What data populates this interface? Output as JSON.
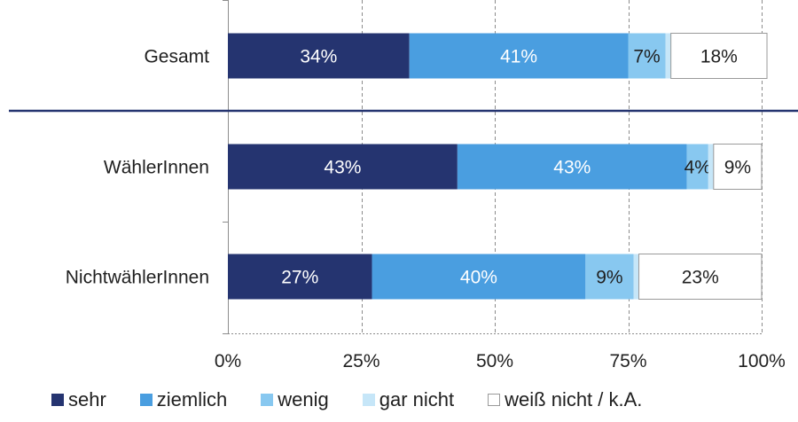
{
  "chart_data": {
    "type": "bar",
    "orientation": "horizontal",
    "stacked": true,
    "categories": [
      "Gesamt",
      "WählerInnen",
      "NichtwählerInnen"
    ],
    "series": [
      {
        "name": "sehr",
        "color": "#253470",
        "values": [
          34,
          43,
          27
        ],
        "labels": [
          "34%",
          "43%",
          "27%"
        ]
      },
      {
        "name": "ziemlich",
        "color": "#4a9ee0",
        "values": [
          41,
          43,
          40
        ],
        "labels": [
          "41%",
          "43%",
          "40%"
        ]
      },
      {
        "name": "wenig",
        "color": "#88c8f0",
        "values": [
          7,
          4,
          9
        ],
        "labels": [
          "7%",
          "4%",
          "9%"
        ]
      },
      {
        "name": "gar nicht",
        "color": "#c6e6f8",
        "values": [
          1,
          1,
          1
        ],
        "labels": [
          "",
          "",
          ""
        ]
      },
      {
        "name": "weiß nicht / k.A.",
        "color": "#ffffff",
        "values": [
          18,
          9,
          23
        ],
        "labels": [
          "18%",
          "9%",
          "23%"
        ]
      }
    ],
    "x_ticks": [
      "0%",
      "25%",
      "50%",
      "75%",
      "100%"
    ],
    "xlim": [
      0,
      100
    ],
    "grid": true,
    "legend_position": "bottom",
    "separator_after_category": "Gesamt"
  }
}
